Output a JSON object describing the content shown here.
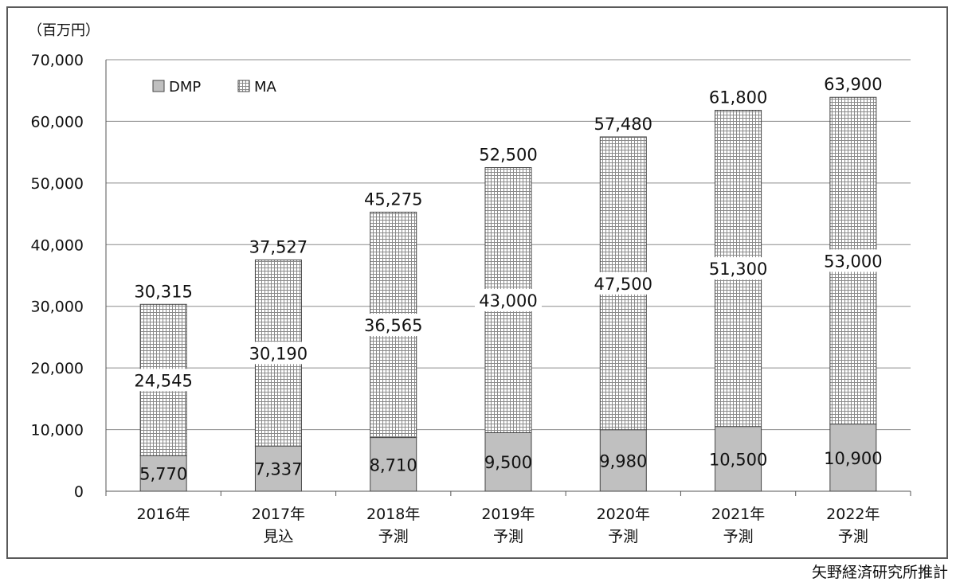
{
  "chart_data": {
    "type": "bar",
    "stacked": true,
    "unit_label": "（百万円）",
    "categories": [
      [
        "2016年"
      ],
      [
        "2017年",
        "見込"
      ],
      [
        "2018年",
        "予測"
      ],
      [
        "2019年",
        "予測"
      ],
      [
        "2020年",
        "予測"
      ],
      [
        "2021年",
        "予測"
      ],
      [
        "2022年",
        "予測"
      ]
    ],
    "series": [
      {
        "name": "DMP",
        "values": [
          5770,
          7337,
          8710,
          9500,
          9980,
          10500,
          10900
        ],
        "labels": [
          "5,770",
          "7,337",
          "8,710",
          "9,500",
          "9,980",
          "10,500",
          "10,900"
        ],
        "color": "#c0c0c0"
      },
      {
        "name": "MA",
        "values": [
          24545,
          30190,
          36565,
          43000,
          47500,
          51300,
          53000
        ],
        "labels": [
          "24,545",
          "30,190",
          "36,565",
          "43,000",
          "47,500",
          "51,300",
          "53,000"
        ],
        "color": "#ffffff"
      }
    ],
    "totals": [
      30315,
      37527,
      45275,
      52500,
      57480,
      61800,
      63900
    ],
    "total_labels": [
      "30,315",
      "37,527",
      "45,275",
      "52,500",
      "57,480",
      "61,800",
      "63,900"
    ],
    "ylim": [
      0,
      70000
    ],
    "yticks": [
      0,
      10000,
      20000,
      30000,
      40000,
      50000,
      60000,
      70000
    ],
    "ytick_labels": [
      "0",
      "10,000",
      "20,000",
      "30,000",
      "40,000",
      "50,000",
      "60,000",
      "70,000"
    ],
    "grid": true,
    "legend_position": "top-left"
  },
  "source": "矢野経済研究所推計"
}
